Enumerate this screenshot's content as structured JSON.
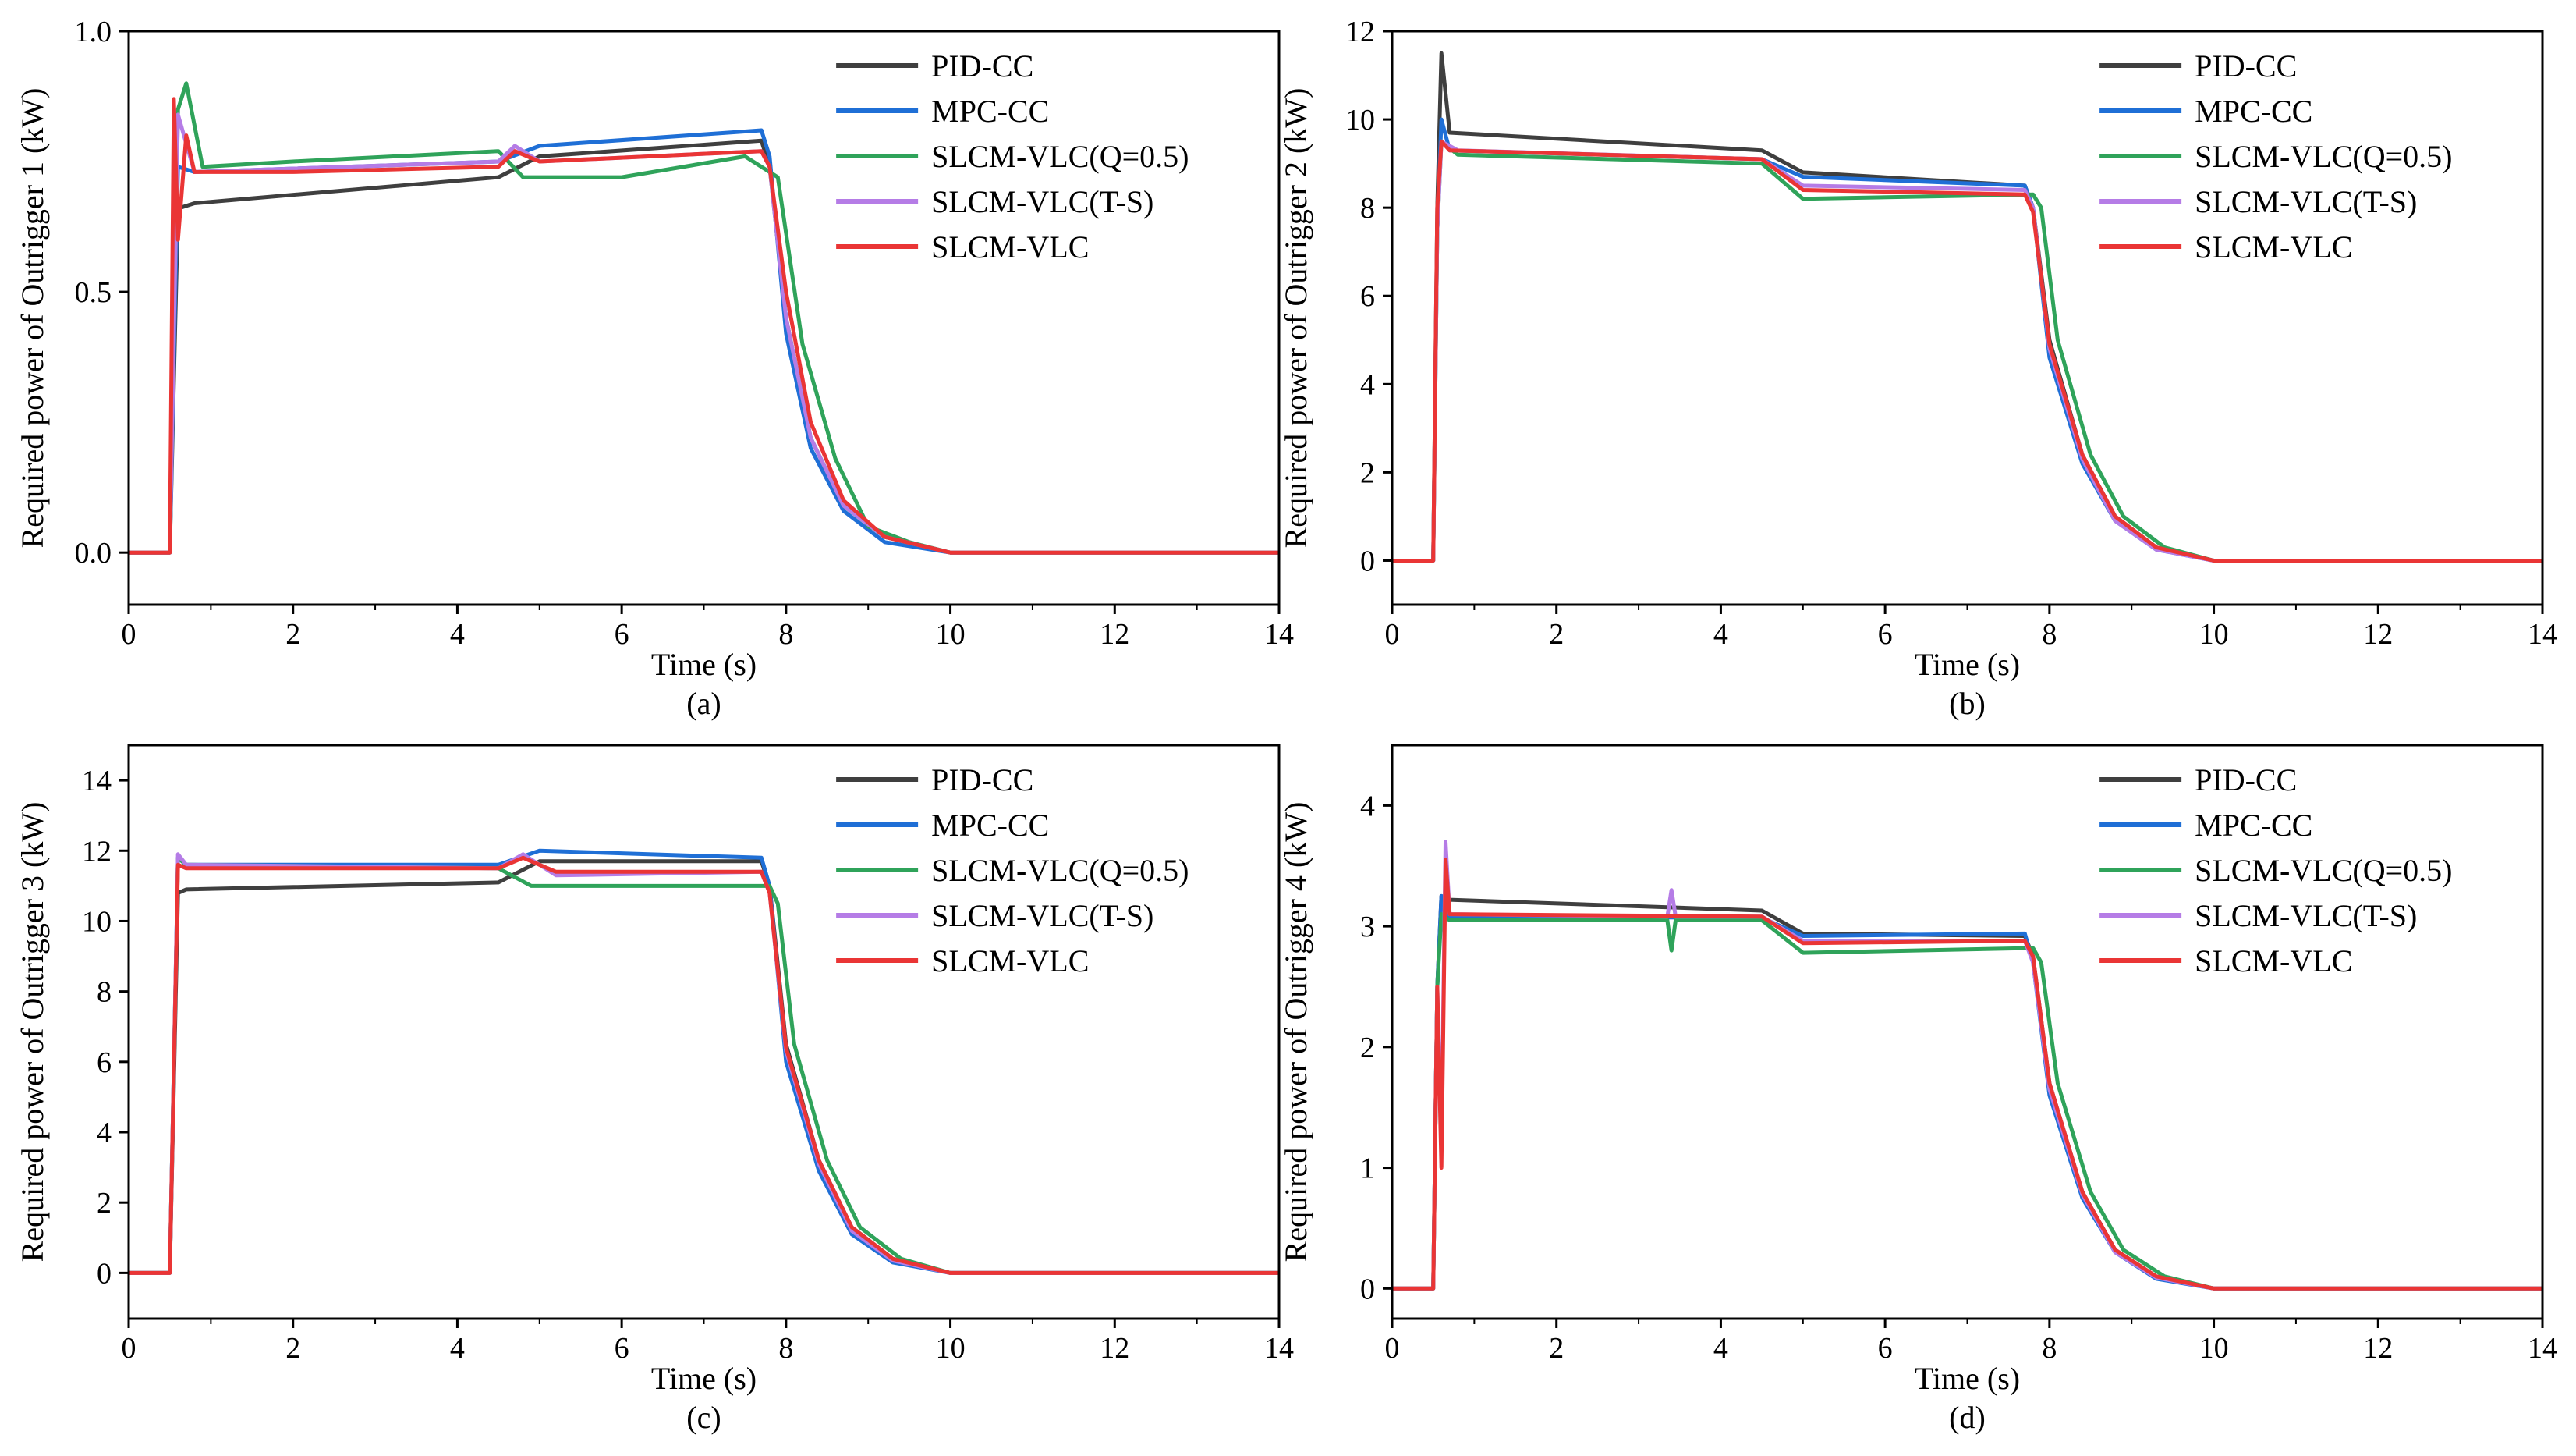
{
  "figure": {
    "series_meta": [
      {
        "key": "pid",
        "name": "PID-CC",
        "color": "#3f3f3f"
      },
      {
        "key": "mpc",
        "name": "MPC-CC",
        "color": "#1f6fd6"
      },
      {
        "key": "q05",
        "name": "SLCM-VLC(Q=0.5)",
        "color": "#2fa35a"
      },
      {
        "key": "ts",
        "name": "SLCM-VLC(T-S)",
        "color": "#b57ce6"
      },
      {
        "key": "slcm",
        "name": "SLCM-VLC",
        "color": "#ea3535"
      }
    ]
  },
  "chart_data": [
    {
      "type": "line",
      "caption": "(a)",
      "title": "",
      "xlabel": "Time (s)",
      "ylabel": "Required power of Outrigger 1 (kW)",
      "xlim": [
        0,
        14
      ],
      "ylim": [
        -0.1,
        1.0
      ],
      "xticks": [
        0,
        2,
        4,
        6,
        8,
        10,
        12,
        14
      ],
      "yticks": [
        0.0,
        0.5,
        1.0
      ],
      "ytick_labels": [
        "0.0",
        "0.5",
        "1.0"
      ],
      "legend": "top-right",
      "series": [
        {
          "name": "PID-CC",
          "x": [
            0,
            0.5,
            0.6,
            0.8,
            4.5,
            5.0,
            7.7,
            7.8,
            8.0,
            8.3,
            8.7,
            9.2,
            10,
            14
          ],
          "y": [
            0,
            0,
            0.66,
            0.67,
            0.72,
            0.76,
            0.79,
            0.74,
            0.45,
            0.22,
            0.09,
            0.03,
            0.0,
            0.0
          ]
        },
        {
          "name": "MPC-CC",
          "x": [
            0,
            0.5,
            0.6,
            0.8,
            4.5,
            5.0,
            7.7,
            7.8,
            8.0,
            8.3,
            8.7,
            9.2,
            10,
            14
          ],
          "y": [
            0,
            0,
            0.74,
            0.73,
            0.75,
            0.78,
            0.81,
            0.76,
            0.42,
            0.2,
            0.08,
            0.02,
            0.0,
            0.0
          ]
        },
        {
          "name": "SLCM-VLC(Q=0.5)",
          "x": [
            0,
            0.5,
            0.6,
            0.7,
            0.9,
            2.0,
            4.5,
            4.8,
            6.0,
            7.5,
            7.9,
            8.2,
            8.6,
            9.0,
            9.5,
            10,
            14
          ],
          "y": [
            0,
            0,
            0.85,
            0.9,
            0.74,
            0.75,
            0.77,
            0.72,
            0.72,
            0.76,
            0.72,
            0.4,
            0.18,
            0.05,
            0.02,
            0.0,
            0.0
          ]
        },
        {
          "name": "SLCM-VLC(T-S)",
          "x": [
            0,
            0.5,
            0.6,
            0.8,
            4.5,
            4.7,
            5.0,
            7.7,
            7.8,
            8.0,
            8.3,
            8.7,
            9.2,
            10,
            14
          ],
          "y": [
            0,
            0,
            0.84,
            0.73,
            0.75,
            0.78,
            0.75,
            0.77,
            0.74,
            0.45,
            0.22,
            0.09,
            0.03,
            0.0,
            0.0
          ]
        },
        {
          "name": "SLCM-VLC",
          "x": [
            0,
            0.5,
            0.55,
            0.6,
            0.7,
            0.8,
            2.0,
            4.5,
            4.7,
            5.0,
            7.7,
            7.8,
            8.0,
            8.3,
            8.7,
            9.2,
            10,
            14
          ],
          "y": [
            0,
            0,
            0.87,
            0.6,
            0.8,
            0.73,
            0.73,
            0.74,
            0.77,
            0.75,
            0.77,
            0.74,
            0.5,
            0.25,
            0.1,
            0.03,
            0.0,
            0.0
          ]
        }
      ]
    },
    {
      "type": "line",
      "caption": "(b)",
      "title": "",
      "xlabel": "Time (s)",
      "ylabel": "Required power of Outrigger 2 (kW)",
      "xlim": [
        0,
        14
      ],
      "ylim": [
        -1,
        12
      ],
      "xticks": [
        0,
        2,
        4,
        6,
        8,
        10,
        12,
        14
      ],
      "yticks": [
        0,
        2,
        4,
        6,
        8,
        10,
        12
      ],
      "ytick_labels": [
        "0",
        "2",
        "4",
        "6",
        "8",
        "10",
        "12"
      ],
      "legend": "top-right",
      "series": [
        {
          "name": "PID-CC",
          "x": [
            0,
            0.5,
            0.55,
            0.6,
            0.7,
            4.5,
            5.0,
            7.7,
            7.8,
            8.0,
            8.4,
            8.8,
            9.3,
            10,
            14
          ],
          "y": [
            0,
            0,
            8.0,
            11.5,
            9.7,
            9.3,
            8.8,
            8.5,
            8.0,
            5.0,
            2.4,
            1.0,
            0.3,
            0.0,
            0.0
          ]
        },
        {
          "name": "MPC-CC",
          "x": [
            0,
            0.5,
            0.55,
            0.6,
            0.7,
            4.5,
            5.0,
            7.7,
            7.8,
            8.0,
            8.4,
            8.8,
            9.3,
            10,
            14
          ],
          "y": [
            0,
            0,
            7.5,
            10.0,
            9.3,
            9.1,
            8.7,
            8.5,
            8.0,
            4.6,
            2.2,
            0.9,
            0.25,
            0.0,
            0.0
          ]
        },
        {
          "name": "SLCM-VLC(Q=0.5)",
          "x": [
            0,
            0.5,
            0.55,
            0.6,
            0.8,
            4.5,
            5.0,
            7.8,
            7.9,
            8.1,
            8.5,
            8.9,
            9.4,
            10,
            14
          ],
          "y": [
            0,
            0,
            7.5,
            9.5,
            9.2,
            9.0,
            8.2,
            8.3,
            8.0,
            5.0,
            2.4,
            1.0,
            0.3,
            0.0,
            0.0
          ]
        },
        {
          "name": "SLCM-VLC(T-S)",
          "x": [
            0,
            0.5,
            0.55,
            0.6,
            0.8,
            4.5,
            5.0,
            7.7,
            7.8,
            8.0,
            8.4,
            8.8,
            9.3,
            10,
            14
          ],
          "y": [
            0,
            0,
            7.5,
            9.5,
            9.3,
            9.1,
            8.5,
            8.4,
            8.0,
            4.8,
            2.3,
            0.9,
            0.25,
            0.0,
            0.0
          ]
        },
        {
          "name": "SLCM-VLC",
          "x": [
            0,
            0.5,
            0.55,
            0.6,
            0.7,
            4.5,
            5.0,
            7.7,
            7.8,
            8.0,
            8.4,
            8.8,
            9.3,
            10,
            14
          ],
          "y": [
            0,
            0,
            8.0,
            9.5,
            9.3,
            9.1,
            8.4,
            8.3,
            7.9,
            4.9,
            2.4,
            1.0,
            0.3,
            0.0,
            0.0
          ]
        }
      ]
    },
    {
      "type": "line",
      "caption": "(c)",
      "title": "",
      "xlabel": "Time (s)",
      "ylabel": "Required power of Outrigger 3 (kW)",
      "xlim": [
        0,
        14
      ],
      "ylim": [
        -1.3,
        15
      ],
      "xticks": [
        0,
        2,
        4,
        6,
        8,
        10,
        12,
        14
      ],
      "yticks": [
        0,
        2,
        4,
        6,
        8,
        10,
        12,
        14
      ],
      "ytick_labels": [
        "0",
        "2",
        "4",
        "6",
        "8",
        "10",
        "12",
        "14"
      ],
      "legend": "top-right",
      "series": [
        {
          "name": "PID-CC",
          "x": [
            0,
            0.5,
            0.6,
            0.7,
            4.5,
            5.0,
            7.7,
            7.8,
            8.0,
            8.4,
            8.8,
            9.3,
            10,
            14
          ],
          "y": [
            0,
            0,
            10.8,
            10.9,
            11.1,
            11.7,
            11.7,
            11.0,
            6.5,
            3.2,
            1.3,
            0.4,
            0.0,
            0.0
          ]
        },
        {
          "name": "MPC-CC",
          "x": [
            0,
            0.5,
            0.6,
            0.7,
            4.5,
            5.0,
            7.7,
            7.8,
            8.0,
            8.4,
            8.8,
            9.3,
            10,
            14
          ],
          "y": [
            0,
            0,
            11.8,
            11.6,
            11.6,
            12.0,
            11.8,
            11.0,
            6.0,
            2.9,
            1.1,
            0.3,
            0.0,
            0.0
          ]
        },
        {
          "name": "SLCM-VLC(Q=0.5)",
          "x": [
            0,
            0.5,
            0.6,
            0.7,
            4.5,
            4.9,
            7.8,
            7.9,
            8.1,
            8.5,
            8.9,
            9.4,
            10,
            14
          ],
          "y": [
            0,
            0,
            11.8,
            11.6,
            11.5,
            11.0,
            11.0,
            10.5,
            6.5,
            3.2,
            1.3,
            0.4,
            0.0,
            0.0
          ]
        },
        {
          "name": "SLCM-VLC(T-S)",
          "x": [
            0,
            0.5,
            0.6,
            0.7,
            4.5,
            4.8,
            5.2,
            7.7,
            7.8,
            8.0,
            8.4,
            8.8,
            9.3,
            10,
            14
          ],
          "y": [
            0,
            0,
            11.9,
            11.6,
            11.5,
            11.9,
            11.3,
            11.4,
            10.8,
            6.3,
            3.1,
            1.2,
            0.35,
            0.0,
            0.0
          ]
        },
        {
          "name": "SLCM-VLC",
          "x": [
            0,
            0.5,
            0.6,
            0.7,
            4.5,
            4.8,
            5.2,
            7.7,
            7.8,
            8.0,
            8.4,
            8.8,
            9.3,
            10,
            14
          ],
          "y": [
            0,
            0,
            11.6,
            11.5,
            11.5,
            11.8,
            11.4,
            11.4,
            10.8,
            6.4,
            3.2,
            1.3,
            0.4,
            0.0,
            0.0
          ]
        }
      ]
    },
    {
      "type": "line",
      "caption": "(d)",
      "title": "",
      "xlabel": "Time (s)",
      "ylabel": "Required power of Outrigger 4 (kW)",
      "xlim": [
        0,
        14
      ],
      "ylim": [
        -0.25,
        4.5
      ],
      "xticks": [
        0,
        2,
        4,
        6,
        8,
        10,
        12,
        14
      ],
      "yticks": [
        0,
        1,
        2,
        3,
        4
      ],
      "ytick_labels": [
        "0",
        "1",
        "2",
        "3",
        "4"
      ],
      "legend": "top-right",
      "series": [
        {
          "name": "PID-CC",
          "x": [
            0,
            0.5,
            0.55,
            0.6,
            0.7,
            4.5,
            5.0,
            7.7,
            7.8,
            8.0,
            8.4,
            8.8,
            9.3,
            10,
            14
          ],
          "y": [
            0,
            0,
            2.5,
            3.25,
            3.22,
            3.13,
            2.94,
            2.92,
            2.75,
            1.7,
            0.8,
            0.32,
            0.1,
            0.0,
            0.0
          ]
        },
        {
          "name": "MPC-CC",
          "x": [
            0,
            0.5,
            0.55,
            0.6,
            0.7,
            4.5,
            5.0,
            7.7,
            7.8,
            8.0,
            8.4,
            8.8,
            9.3,
            10,
            14
          ],
          "y": [
            0,
            0,
            2.5,
            3.25,
            3.08,
            3.07,
            2.92,
            2.94,
            2.7,
            1.6,
            0.75,
            0.3,
            0.08,
            0.0,
            0.0
          ]
        },
        {
          "name": "SLCM-VLC(Q=0.5)",
          "x": [
            0,
            0.5,
            0.55,
            0.6,
            0.7,
            3.35,
            3.4,
            3.45,
            4.5,
            5.0,
            7.8,
            7.9,
            8.1,
            8.5,
            8.9,
            9.4,
            10,
            14
          ],
          "y": [
            0,
            0,
            2.5,
            3.1,
            3.05,
            3.05,
            2.8,
            3.05,
            3.05,
            2.78,
            2.82,
            2.7,
            1.7,
            0.8,
            0.32,
            0.1,
            0.0,
            0.0
          ]
        },
        {
          "name": "SLCM-VLC(T-S)",
          "x": [
            0,
            0.5,
            0.55,
            0.6,
            0.65,
            0.7,
            3.35,
            3.4,
            3.45,
            4.5,
            5.0,
            7.7,
            7.8,
            8.0,
            8.4,
            8.8,
            9.3,
            10,
            14
          ],
          "y": [
            0,
            0,
            2.5,
            1.2,
            3.7,
            3.1,
            3.08,
            3.3,
            3.08,
            3.08,
            2.88,
            2.88,
            2.7,
            1.65,
            0.78,
            0.3,
            0.09,
            0.0,
            0.0
          ]
        },
        {
          "name": "SLCM-VLC",
          "x": [
            0,
            0.5,
            0.55,
            0.6,
            0.65,
            0.7,
            4.5,
            5.0,
            7.7,
            7.8,
            8.0,
            8.4,
            8.8,
            9.3,
            10,
            14
          ],
          "y": [
            0,
            0,
            2.5,
            1.0,
            3.55,
            3.1,
            3.08,
            2.86,
            2.88,
            2.75,
            1.7,
            0.8,
            0.32,
            0.1,
            0.0,
            0.0
          ]
        }
      ]
    }
  ]
}
